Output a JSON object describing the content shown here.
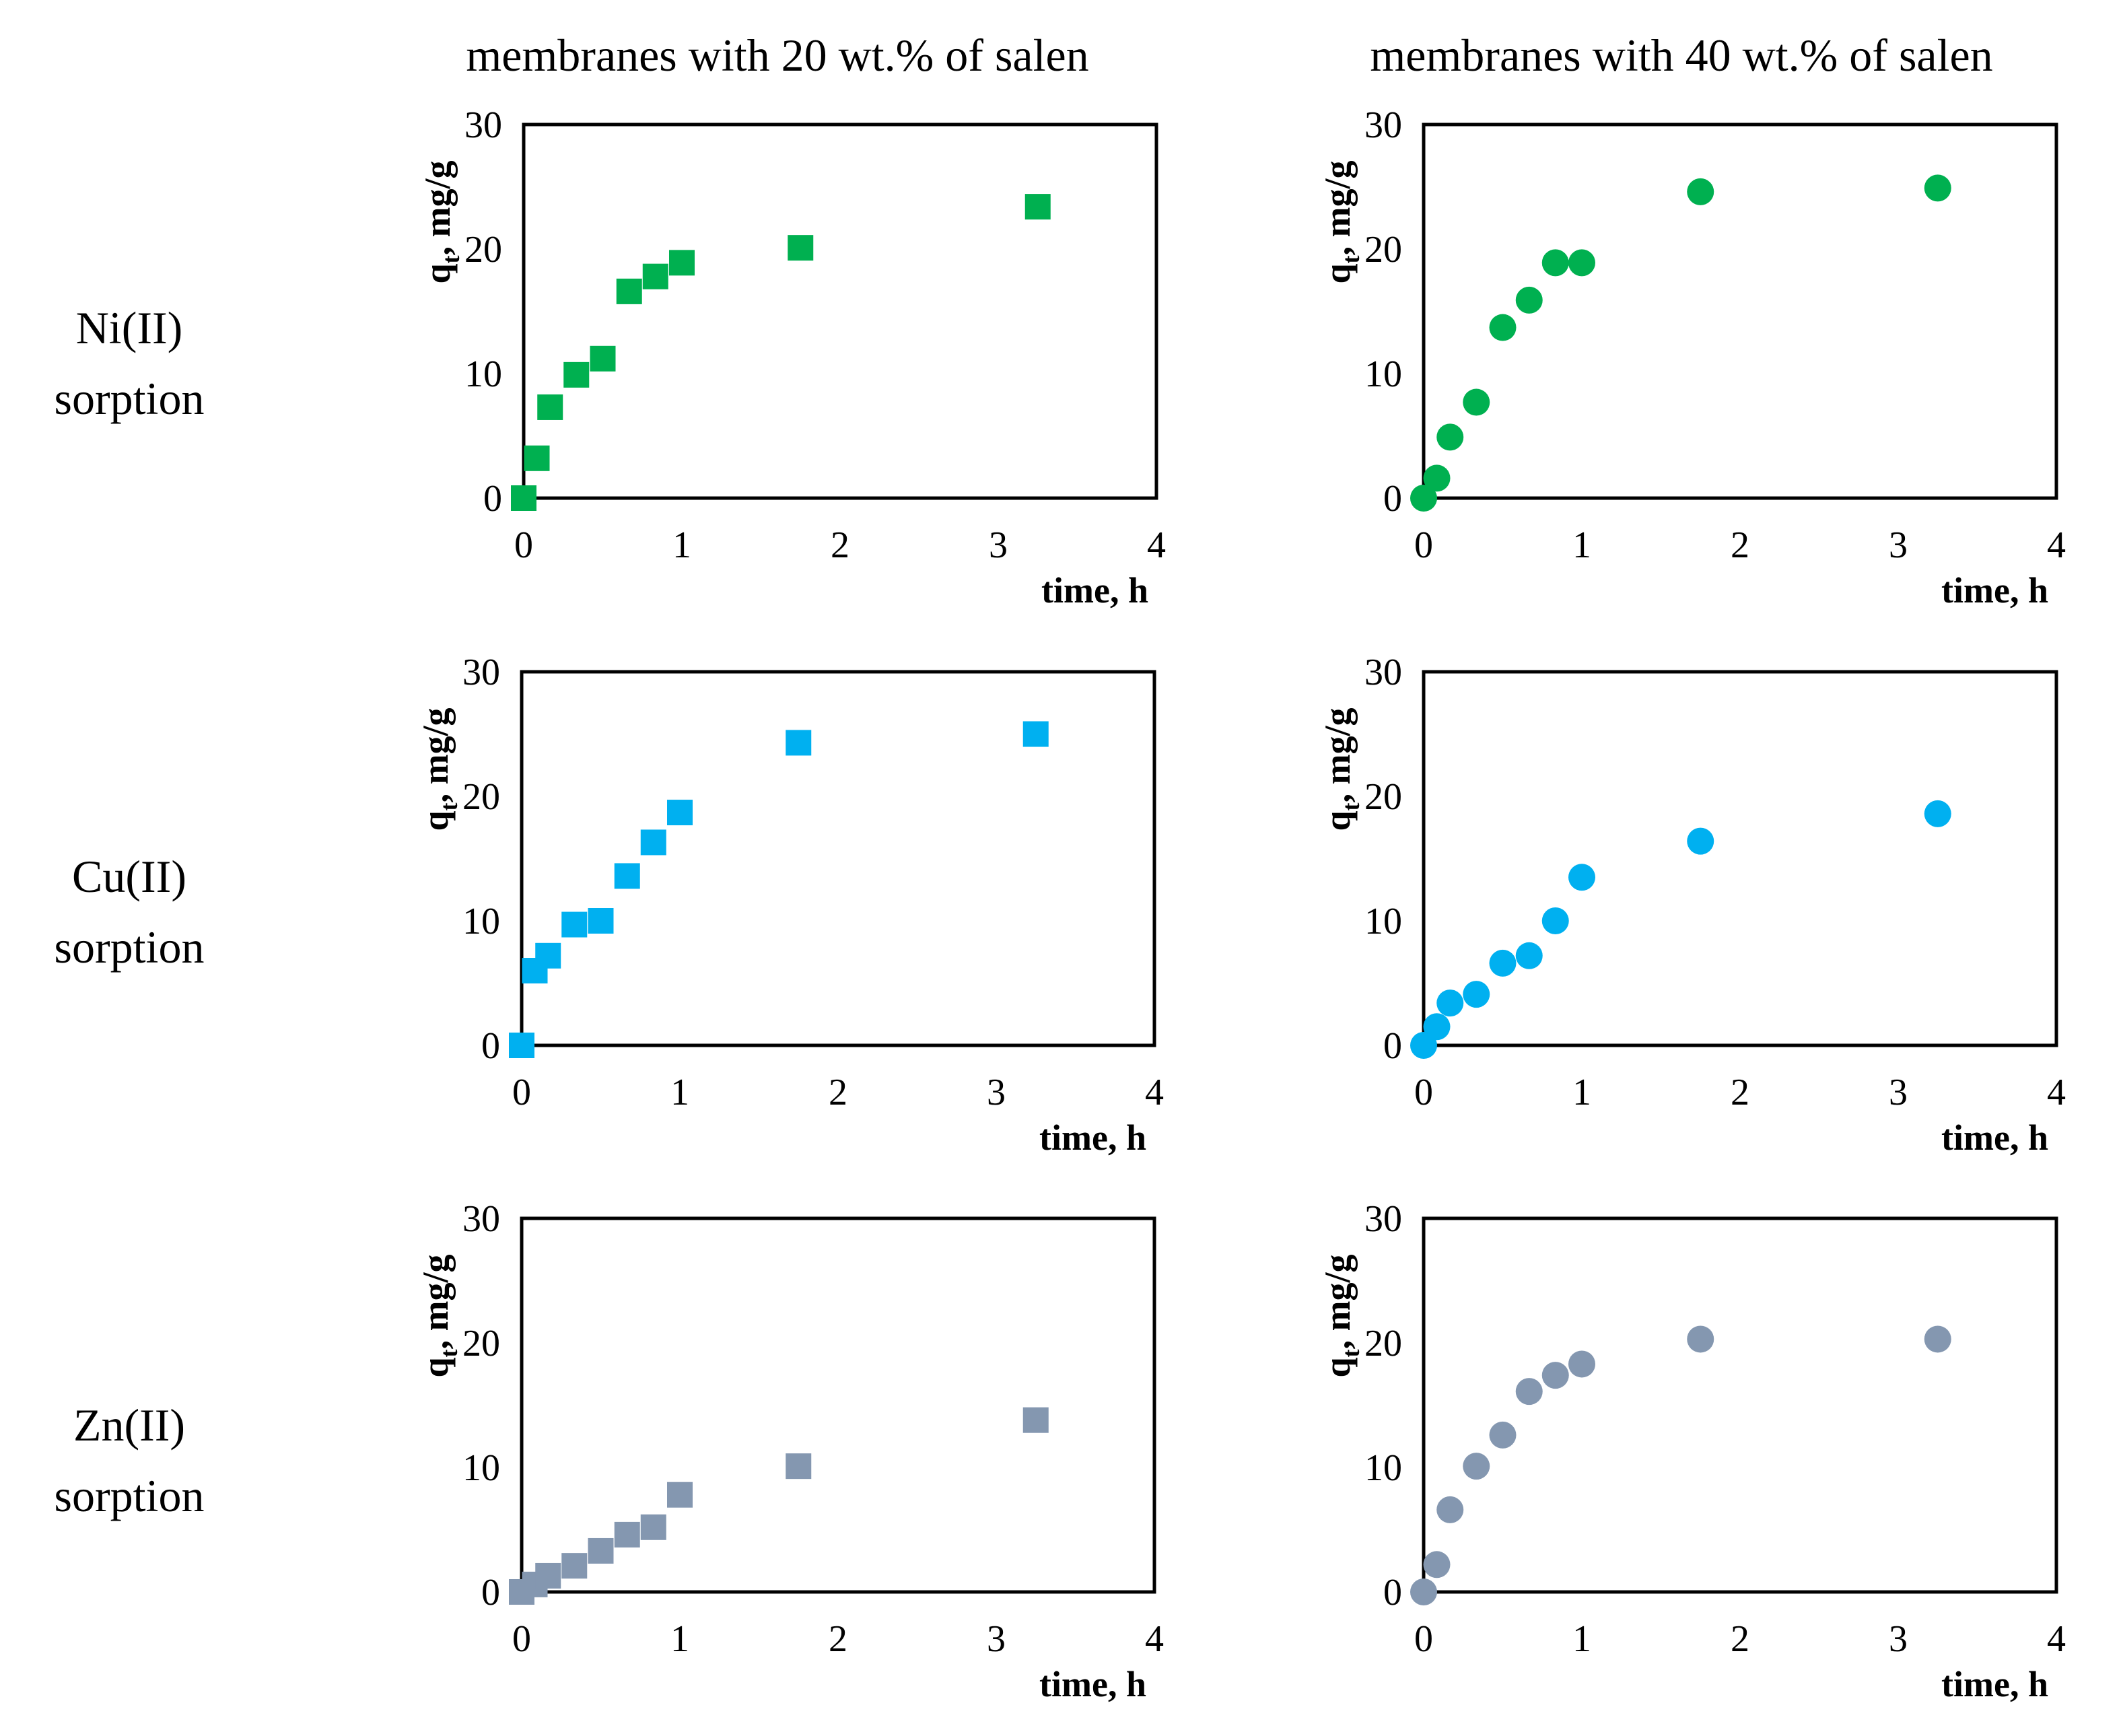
{
  "figure": {
    "column_titles": [
      "membranes with 20 wt.% of salen",
      "membranes with 40 wt.% of salen"
    ],
    "row_labels": [
      {
        "line1": "Ni(II)",
        "line2": "sorption"
      },
      {
        "line1": "Cu(II)",
        "line2": "sorption"
      },
      {
        "line1": "Zn(II)",
        "line2": "sorption"
      }
    ]
  },
  "chart_data": [
    {
      "type": "scatter",
      "title": "Ni(II) sorption - membranes with 20 wt.% of salen",
      "marker": "square",
      "color": "#00B050",
      "xlabel": "time, h",
      "ylabel_main": "q",
      "ylabel_sub": "t",
      "ylabel_rest": ", mg/g",
      "xlim": [
        0,
        4
      ],
      "ylim": [
        0,
        30
      ],
      "xticks": [
        0,
        1,
        2,
        3,
        4
      ],
      "yticks": [
        0,
        10,
        20,
        30
      ],
      "x": [
        0,
        0.083,
        0.167,
        0.333,
        0.5,
        0.667,
        0.833,
        1,
        1.75,
        3.25
      ],
      "y": [
        0,
        3.2,
        7.3,
        9.9,
        11.2,
        16.6,
        17.8,
        18.9,
        20.1,
        23.4
      ]
    },
    {
      "type": "scatter",
      "title": "Ni(II) sorption - membranes with 40 wt.% of salen",
      "marker": "circle",
      "color": "#00B050",
      "xlabel": "time, h",
      "ylabel_main": "q",
      "ylabel_sub": "t",
      "ylabel_rest": ", mg/g",
      "xlim": [
        0,
        4
      ],
      "ylim": [
        0,
        30
      ],
      "xticks": [
        0,
        1,
        2,
        3,
        4
      ],
      "yticks": [
        0,
        10,
        20,
        30
      ],
      "x": [
        0,
        0.083,
        0.167,
        0.333,
        0.5,
        0.667,
        0.833,
        1,
        1.75,
        3.25
      ],
      "y": [
        0,
        1.6,
        4.9,
        7.7,
        13.7,
        15.9,
        18.9,
        18.9,
        24.6,
        24.9
      ]
    },
    {
      "type": "scatter",
      "title": "Cu(II) sorption - membranes with 20 wt.% of salen",
      "marker": "square",
      "color": "#00B0F0",
      "xlabel": "time, h",
      "ylabel_main": "q",
      "ylabel_sub": "t",
      "ylabel_rest": ", mg/g",
      "xlim": [
        0,
        4
      ],
      "ylim": [
        0,
        30
      ],
      "xticks": [
        0,
        1,
        2,
        3,
        4
      ],
      "yticks": [
        0,
        10,
        20,
        30
      ],
      "x": [
        0,
        0.083,
        0.167,
        0.333,
        0.5,
        0.667,
        0.833,
        1,
        1.75,
        3.25
      ],
      "y": [
        0,
        6,
        7.2,
        9.7,
        10,
        13.6,
        16.3,
        18.7,
        24.3,
        25
      ]
    },
    {
      "type": "scatter",
      "title": "Cu(II) sorption - membranes with 40 wt.% of salen",
      "marker": "circle",
      "color": "#00B0F0",
      "xlabel": "time, h",
      "ylabel_main": "q",
      "ylabel_sub": "t",
      "ylabel_rest": ", mg/g",
      "xlim": [
        0,
        4
      ],
      "ylim": [
        0,
        30
      ],
      "xticks": [
        0,
        1,
        2,
        3,
        4
      ],
      "yticks": [
        0,
        10,
        20,
        30
      ],
      "x": [
        0,
        0.083,
        0.167,
        0.333,
        0.5,
        0.667,
        0.833,
        1,
        1.75,
        3.25
      ],
      "y": [
        0,
        1.5,
        3.4,
        4.1,
        6.6,
        7.2,
        10,
        13.5,
        16.4,
        18.6
      ]
    },
    {
      "type": "scatter",
      "title": "Zn(II) sorption - membranes with 20 wt.% of salen",
      "marker": "square",
      "color": "#8497B0",
      "xlabel": "time, h",
      "ylabel_main": "q",
      "ylabel_sub": "t",
      "ylabel_rest": ", mg/g",
      "xlim": [
        0,
        4
      ],
      "ylim": [
        0,
        30
      ],
      "xticks": [
        0,
        1,
        2,
        3,
        4
      ],
      "yticks": [
        0,
        10,
        20,
        30
      ],
      "x": [
        0,
        0.083,
        0.167,
        0.333,
        0.5,
        0.667,
        0.833,
        1,
        1.75,
        3.25
      ],
      "y": [
        0,
        0.6,
        1.3,
        2.1,
        3.3,
        4.6,
        5.2,
        7.8,
        10.1,
        13.8
      ]
    },
    {
      "type": "scatter",
      "title": "Zn(II) sorption - membranes with 40 wt.% of salen",
      "marker": "circle",
      "color": "#8497B0",
      "xlabel": "time, h",
      "ylabel_main": "q",
      "ylabel_sub": "t",
      "ylabel_rest": ", mg/g",
      "xlim": [
        0,
        4
      ],
      "ylim": [
        0,
        30
      ],
      "xticks": [
        0,
        1,
        2,
        3,
        4
      ],
      "yticks": [
        0,
        10,
        20,
        30
      ],
      "x": [
        0,
        0.083,
        0.167,
        0.333,
        0.5,
        0.667,
        0.833,
        1,
        1.75,
        3.25
      ],
      "y": [
        0,
        2.2,
        6.6,
        10.1,
        12.6,
        16.1,
        17.4,
        18.3,
        20.3,
        20.3
      ]
    }
  ]
}
